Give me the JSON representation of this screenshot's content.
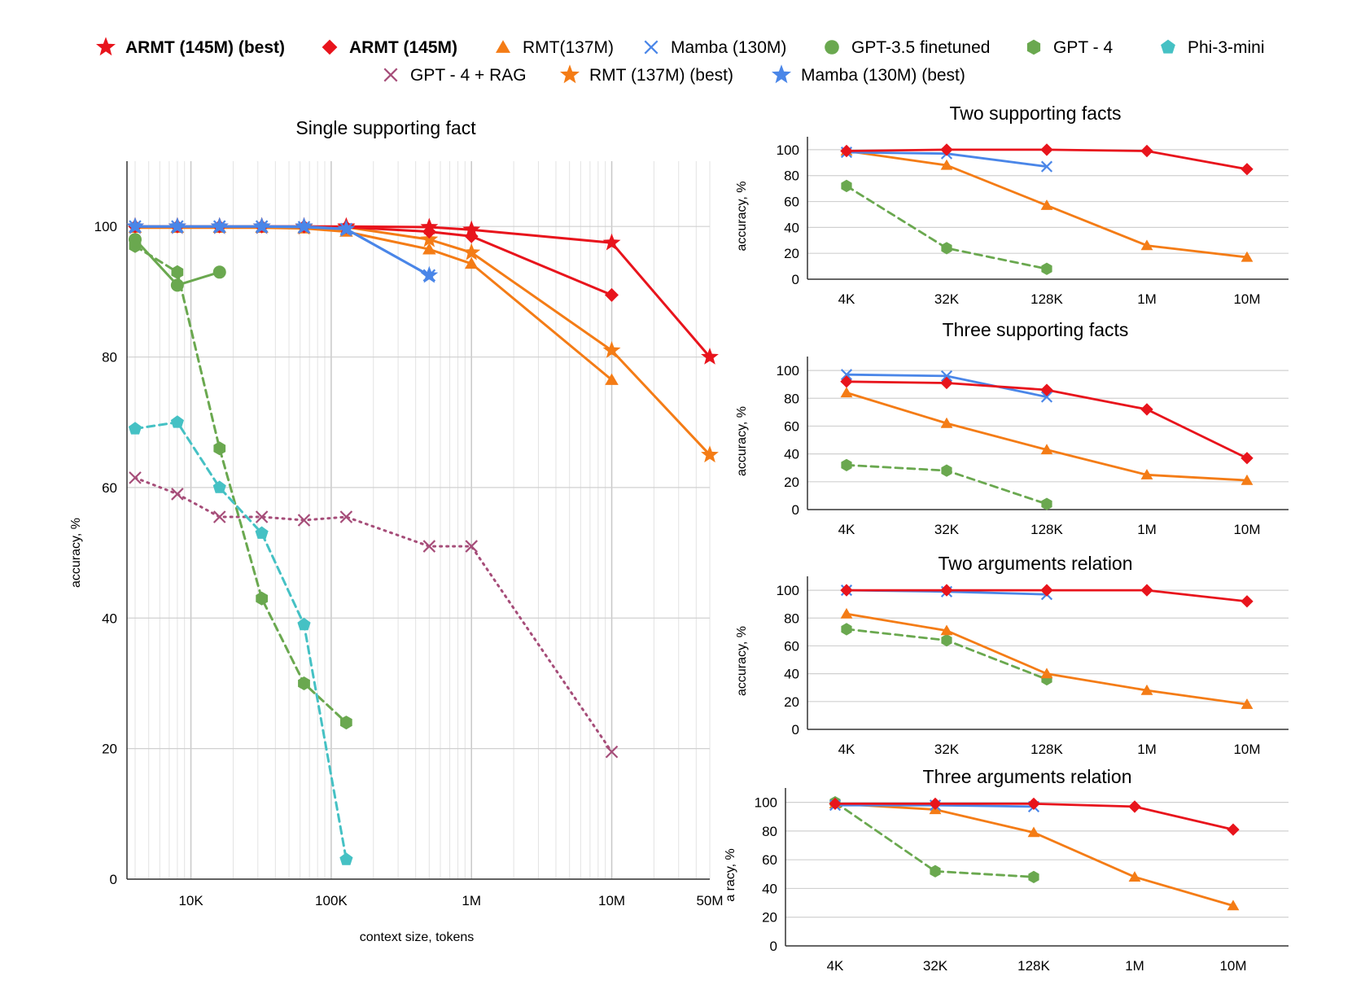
{
  "legend": [
    {
      "label": "ARMT (145M) (best)",
      "marker": "star",
      "color": "#e8141c",
      "bold": true
    },
    {
      "label": "ARMT (145M)",
      "marker": "diamond",
      "color": "#e8141c",
      "bold": true
    },
    {
      "label": "RMT(137M)",
      "marker": "triangle",
      "color": "#f47c16",
      "bold": false
    },
    {
      "label": "Mamba (130M)",
      "marker": "x",
      "color": "#4a86e8",
      "bold": false
    },
    {
      "label": "GPT-3.5 finetuned",
      "marker": "circle",
      "color": "#6aa84f",
      "bold": false
    },
    {
      "label": "GPT - 4",
      "marker": "hexagon",
      "color": "#6aa84f",
      "bold": false
    },
    {
      "label": "Phi-3-mini",
      "marker": "pentagon",
      "color": "#45c1c4",
      "bold": false
    },
    {
      "label": "GPT - 4 + RAG",
      "marker": "x",
      "color": "#a64d79",
      "bold": false
    },
    {
      "label": "RMT (137M) (best)",
      "marker": "star",
      "color": "#f47c16",
      "bold": false
    },
    {
      "label": "Mamba (130M) (best)",
      "marker": "star",
      "color": "#4a86e8",
      "bold": false
    }
  ],
  "chart_data": [
    {
      "id": "single",
      "type": "line",
      "title": "Single supporting fact",
      "xlabel": "context size, tokens",
      "ylabel": "accuracy, %",
      "xscale": "log",
      "xlim": [
        3500,
        50000000
      ],
      "ylim": [
        0,
        110
      ],
      "yticks": [
        0,
        20,
        40,
        60,
        80,
        100
      ],
      "xticks": [
        {
          "value": 10000,
          "label": "10K"
        },
        {
          "value": 100000,
          "label": "100K"
        },
        {
          "value": 1000000,
          "label": "1M"
        },
        {
          "value": 10000000,
          "label": "10M"
        },
        {
          "value": 50000000,
          "label": "50M"
        }
      ],
      "series": [
        {
          "name": "GPT - 4 + RAG",
          "color": "#a64d79",
          "dash": "dotted",
          "marker": "x",
          "x": [
            4000,
            8000,
            16000,
            32000,
            64000,
            128000,
            500000,
            1000000,
            10000000
          ],
          "y": [
            61.5,
            59,
            55.5,
            55.5,
            55,
            55.5,
            51,
            51,
            19.5
          ]
        },
        {
          "name": "GPT - 4",
          "color": "#6aa84f",
          "dash": "dashed",
          "marker": "hexagon",
          "x": [
            4000,
            8000,
            16000,
            32000,
            64000,
            128000
          ],
          "y": [
            97,
            93,
            66,
            43,
            30,
            24
          ]
        },
        {
          "name": "Phi-3-mini",
          "color": "#45c1c4",
          "dash": "dashed",
          "marker": "pentagon",
          "x": [
            4000,
            8000,
            16000,
            32000,
            64000,
            128000
          ],
          "y": [
            69,
            70,
            60,
            53,
            39,
            3
          ]
        },
        {
          "name": "GPT-3.5 finetuned",
          "color": "#6aa84f",
          "dash": "solid",
          "marker": "circle",
          "x": [
            4000,
            8000,
            16000
          ],
          "y": [
            98,
            91,
            93
          ]
        },
        {
          "name": "RMT(137M)",
          "color": "#f47c16",
          "dash": "solid",
          "marker": "triangle",
          "x": [
            4000,
            8000,
            16000,
            32000,
            64000,
            128000,
            500000,
            1000000,
            10000000
          ],
          "y": [
            99.8,
            99.8,
            99.8,
            99.8,
            99.7,
            99.2,
            96.5,
            94.3,
            76.5
          ]
        },
        {
          "name": "RMT (137M) (best)",
          "color": "#f47c16",
          "dash": "solid",
          "marker": "star",
          "x": [
            4000,
            8000,
            16000,
            32000,
            64000,
            128000,
            500000,
            1000000,
            10000000,
            50000000
          ],
          "y": [
            100,
            100,
            100,
            100,
            99.9,
            99.9,
            98,
            96,
            81,
            65
          ]
        },
        {
          "name": "ARMT (145M)",
          "color": "#e8141c",
          "dash": "solid",
          "marker": "diamond",
          "x": [
            4000,
            8000,
            16000,
            32000,
            64000,
            128000,
            500000,
            1000000,
            10000000
          ],
          "y": [
            100,
            100,
            100,
            100,
            100,
            99.9,
            99.2,
            98.5,
            89.5
          ]
        },
        {
          "name": "ARMT (145M) (best)",
          "color": "#e8141c",
          "dash": "solid",
          "marker": "star",
          "x": [
            4000,
            8000,
            16000,
            32000,
            64000,
            128000,
            500000,
            1000000,
            10000000,
            50000000
          ],
          "y": [
            100,
            100,
            100,
            100,
            100,
            100,
            99.9,
            99.5,
            97.5,
            80
          ]
        },
        {
          "name": "Mamba (130M)",
          "color": "#4a86e8",
          "dash": "solid",
          "marker": "x",
          "x": [
            4000,
            8000,
            16000,
            32000,
            64000,
            128000,
            500000
          ],
          "y": [
            100,
            100,
            100,
            100,
            99.9,
            99.6,
            92.5
          ]
        },
        {
          "name": "Mamba (130M) (best)",
          "color": "#4a86e8",
          "dash": "solid",
          "marker": "star",
          "x": [
            4000,
            8000,
            16000,
            32000,
            64000,
            128000,
            500000
          ],
          "y": [
            100,
            100,
            100,
            100,
            100,
            99.6,
            92.5
          ]
        }
      ]
    },
    {
      "id": "two-facts",
      "type": "line",
      "title": "Two supporting facts",
      "ylabel": "accuracy, %",
      "categories": [
        "4K",
        "32K",
        "128K",
        "1M",
        "10M"
      ],
      "ylim": [
        0,
        110
      ],
      "yticks": [
        0,
        20,
        40,
        60,
        80,
        100
      ],
      "series": [
        {
          "name": "GPT - 4",
          "color": "#6aa84f",
          "dash": "dashed",
          "marker": "hexagon",
          "values": [
            72,
            24,
            8,
            null,
            null
          ]
        },
        {
          "name": "RMT(137M)",
          "color": "#f47c16",
          "dash": "solid",
          "marker": "triangle",
          "values": [
            99,
            88,
            57,
            26,
            17
          ]
        },
        {
          "name": "Mamba (130M)",
          "color": "#4a86e8",
          "dash": "solid",
          "marker": "x",
          "values": [
            98,
            97,
            87,
            null,
            null
          ]
        },
        {
          "name": "ARMT (145M)",
          "color": "#e8141c",
          "dash": "solid",
          "marker": "diamond",
          "values": [
            99,
            100,
            100,
            99,
            85
          ]
        }
      ]
    },
    {
      "id": "three-facts",
      "type": "line",
      "title": "Three supporting facts",
      "ylabel": "accuracy, %",
      "categories": [
        "4K",
        "32K",
        "128K",
        "1M",
        "10M"
      ],
      "ylim": [
        0,
        110
      ],
      "yticks": [
        0,
        20,
        40,
        60,
        80,
        100
      ],
      "series": [
        {
          "name": "GPT - 4",
          "color": "#6aa84f",
          "dash": "dashed",
          "marker": "hexagon",
          "values": [
            32,
            28,
            4,
            null,
            null
          ]
        },
        {
          "name": "RMT(137M)",
          "color": "#f47c16",
          "dash": "solid",
          "marker": "triangle",
          "values": [
            84,
            62,
            43,
            25,
            21
          ]
        },
        {
          "name": "Mamba (130M)",
          "color": "#4a86e8",
          "dash": "solid",
          "marker": "x",
          "values": [
            97,
            96,
            81,
            null,
            null
          ]
        },
        {
          "name": "ARMT (145M)",
          "color": "#e8141c",
          "dash": "solid",
          "marker": "diamond",
          "values": [
            92,
            91,
            86,
            72,
            37
          ]
        }
      ]
    },
    {
      "id": "two-args",
      "type": "line",
      "title": "Two arguments relation",
      "ylabel": "accuracy, %",
      "categories": [
        "4K",
        "32K",
        "128K",
        "1M",
        "10M"
      ],
      "ylim": [
        0,
        110
      ],
      "yticks": [
        0,
        20,
        40,
        60,
        80,
        100
      ],
      "series": [
        {
          "name": "GPT - 4",
          "color": "#6aa84f",
          "dash": "dashed",
          "marker": "hexagon",
          "values": [
            72,
            64,
            36,
            null,
            null
          ]
        },
        {
          "name": "RMT(137M)",
          "color": "#f47c16",
          "dash": "solid",
          "marker": "triangle",
          "values": [
            83,
            71,
            40,
            28,
            18
          ]
        },
        {
          "name": "Mamba (130M)",
          "color": "#4a86e8",
          "dash": "solid",
          "marker": "x",
          "values": [
            100,
            99,
            97,
            null,
            null
          ]
        },
        {
          "name": "ARMT (145M)",
          "color": "#e8141c",
          "dash": "solid",
          "marker": "diamond",
          "values": [
            100,
            100,
            100,
            100,
            92
          ]
        }
      ]
    },
    {
      "id": "three-args",
      "type": "line",
      "title": "Three arguments relation",
      "ylabel": "a     racy, %",
      "categories": [
        "4K",
        "32K",
        "128K",
        "1M",
        "10M"
      ],
      "ylim": [
        0,
        110
      ],
      "yticks": [
        0,
        20,
        40,
        60,
        80,
        100
      ],
      "series": [
        {
          "name": "GPT - 4",
          "color": "#6aa84f",
          "dash": "dashed",
          "marker": "hexagon",
          "values": [
            100,
            52,
            48,
            null,
            null
          ]
        },
        {
          "name": "RMT(137M)",
          "color": "#f47c16",
          "dash": "solid",
          "marker": "triangle",
          "values": [
            99,
            95,
            79,
            48,
            28
          ]
        },
        {
          "name": "Mamba (130M)",
          "color": "#4a86e8",
          "dash": "solid",
          "marker": "x",
          "values": [
            98,
            98,
            97,
            null,
            null
          ]
        },
        {
          "name": "ARMT (145M)",
          "color": "#e8141c",
          "dash": "solid",
          "marker": "diamond",
          "values": [
            99,
            99,
            99,
            97,
            81
          ]
        }
      ]
    }
  ]
}
